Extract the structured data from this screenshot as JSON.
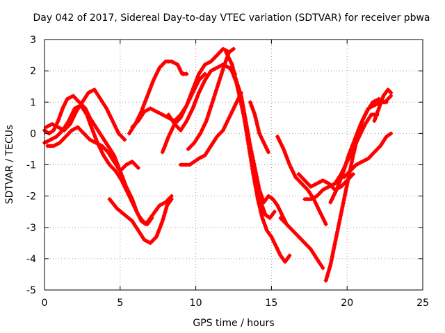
{
  "chart_data": {
    "type": "scatter",
    "title": "Day 042 of 2017, Sidereal Day-to-day VTEC variation (SDTVAR) for receiver pbwa",
    "xlabel": "GPS time / hours",
    "ylabel": "SDTVAR / TECUs",
    "xlim": [
      0,
      25
    ],
    "ylim": [
      -5,
      3
    ],
    "x_ticks": [
      "0",
      "5",
      "10",
      "15",
      "20",
      "25"
    ],
    "y_ticks": [
      "3",
      "2",
      "1",
      "0",
      "-1",
      "-2",
      "-3",
      "-4",
      "-5"
    ],
    "grid": true,
    "marker": "+",
    "color": "#ff0000",
    "series": [
      {
        "x": [
          0.0,
          0.3,
          0.6,
          0.9,
          1.2,
          1.5,
          1.9,
          2.3,
          2.7,
          3.0,
          3.4,
          3.8,
          4.2,
          4.6,
          5.0,
          5.4,
          5.8,
          6.1,
          6.4,
          6.7,
          7.0,
          7.3,
          7.6,
          8.0,
          8.4
        ],
        "y": [
          0.1,
          0.0,
          0.1,
          0.4,
          0.8,
          1.1,
          1.2,
          1.0,
          0.8,
          0.5,
          0.2,
          -0.1,
          -0.4,
          -0.7,
          -1.2,
          -1.7,
          -2.1,
          -2.5,
          -2.8,
          -2.9,
          -2.7,
          -2.5,
          -2.3,
          -2.2,
          -2.0
        ]
      },
      {
        "x": [
          0.0,
          0.4,
          0.8,
          1.2,
          1.6,
          2.0,
          2.4,
          2.8,
          3.1,
          3.5,
          3.9,
          4.3,
          4.7,
          5.1,
          5.5,
          5.9,
          6.2,
          6.5,
          6.8,
          7.1
        ],
        "y": [
          -0.3,
          -0.2,
          -0.1,
          0.1,
          0.4,
          0.8,
          0.9,
          0.6,
          0.2,
          -0.3,
          -0.7,
          -1.0,
          -1.2,
          -1.5,
          -1.9,
          -2.3,
          -2.6,
          -2.8,
          -2.9,
          -2.7
        ]
      },
      {
        "x": [
          0.1,
          0.5,
          0.9,
          1.3,
          1.7,
          2.1,
          2.5,
          2.9,
          3.3,
          3.7,
          4.1,
          4.5,
          4.9,
          5.3
        ],
        "y": [
          0.2,
          0.3,
          0.2,
          0.1,
          0.3,
          0.7,
          1.0,
          1.3,
          1.4,
          1.1,
          0.8,
          0.4,
          0.0,
          -0.2
        ]
      },
      {
        "x": [
          0.2,
          0.6,
          1.0,
          1.4,
          1.8,
          2.2,
          2.6,
          3.0,
          3.4,
          3.8,
          4.2,
          4.6,
          5.0,
          5.4,
          5.8,
          6.2
        ],
        "y": [
          -0.4,
          -0.4,
          -0.3,
          -0.1,
          0.1,
          0.2,
          0.0,
          -0.2,
          -0.3,
          -0.4,
          -0.6,
          -0.9,
          -1.2,
          -1.0,
          -0.9,
          -1.1
        ]
      },
      {
        "x": [
          4.3,
          4.8,
          5.3,
          5.8,
          6.2,
          6.6,
          7.0,
          7.4,
          7.8,
          8.1,
          8.4
        ],
        "y": [
          -2.1,
          -2.4,
          -2.6,
          -2.8,
          -3.1,
          -3.4,
          -3.5,
          -3.3,
          -2.8,
          -2.3,
          -2.1
        ]
      },
      {
        "x": [
          5.6,
          6.0,
          6.4,
          6.8,
          7.2,
          7.6,
          8.0,
          8.4,
          8.8,
          9.1,
          9.4
        ],
        "y": [
          0.0,
          0.3,
          0.7,
          1.2,
          1.7,
          2.1,
          2.3,
          2.3,
          2.2,
          1.9,
          1.9
        ]
      },
      {
        "x": [
          5.8,
          6.2,
          6.6,
          7.0,
          7.4,
          7.8,
          8.2,
          8.6,
          9.0,
          9.4,
          9.8,
          10.2,
          10.6
        ],
        "y": [
          0.2,
          0.4,
          0.7,
          0.8,
          0.7,
          0.6,
          0.5,
          0.4,
          0.6,
          0.9,
          1.3,
          1.7,
          1.9
        ]
      },
      {
        "x": [
          7.8,
          8.2,
          8.6,
          9.0,
          9.4,
          9.8,
          10.2,
          10.6,
          11.0,
          11.4,
          11.8,
          12.2
        ],
        "y": [
          -0.6,
          -0.1,
          0.3,
          0.5,
          0.9,
          1.4,
          1.9,
          2.2,
          2.3,
          2.5,
          2.7,
          2.6
        ]
      },
      {
        "x": [
          8.2,
          8.6,
          9.0,
          9.4,
          9.8,
          10.2,
          10.6,
          11.0,
          11.4,
          11.8,
          12.2,
          12.6
        ],
        "y": [
          0.6,
          0.3,
          0.1,
          0.4,
          0.8,
          1.3,
          1.7,
          2.0,
          2.1,
          2.2,
          2.1,
          1.9
        ]
      },
      {
        "x": [
          9.0,
          9.3,
          9.6,
          9.9,
          10.2,
          10.6,
          11.0,
          11.4,
          11.8,
          12.2,
          12.6,
          13.0
        ],
        "y": [
          -1.0,
          -1.0,
          -1.0,
          -0.9,
          -0.8,
          -0.7,
          -0.4,
          -0.1,
          0.1,
          0.5,
          0.9,
          1.3
        ]
      },
      {
        "x": [
          9.5,
          9.9,
          10.3,
          10.7,
          11.1,
          11.5,
          11.9,
          12.2,
          12.5
        ],
        "y": [
          -0.5,
          -0.3,
          0.0,
          0.4,
          1.0,
          1.6,
          2.2,
          2.6,
          2.7
        ]
      },
      {
        "x": [
          12.0,
          12.4,
          12.8,
          13.2,
          13.5,
          13.8,
          14.1,
          14.4,
          14.7,
          15.0,
          15.3,
          15.6,
          15.9,
          16.2
        ],
        "y": [
          2.6,
          2.2,
          1.4,
          0.5,
          -0.4,
          -1.3,
          -2.1,
          -2.7,
          -3.1,
          -3.3,
          -3.6,
          -3.9,
          -4.1,
          -3.9
        ]
      },
      {
        "x": [
          12.3,
          12.7,
          13.1,
          13.4,
          13.7,
          14.0,
          14.3,
          14.6,
          14.9,
          15.2
        ],
        "y": [
          2.1,
          1.6,
          0.8,
          0.0,
          -0.8,
          -1.6,
          -2.2,
          -2.6,
          -2.7,
          -2.5
        ]
      },
      {
        "x": [
          12.6,
          13.0,
          13.3,
          13.6,
          13.9,
          14.2,
          14.5,
          14.8,
          15.1,
          15.4,
          15.7,
          16.0
        ],
        "y": [
          1.8,
          1.2,
          0.4,
          -0.4,
          -1.1,
          -1.8,
          -2.2,
          -2.0,
          -2.1,
          -2.3,
          -2.6,
          -2.9
        ]
      },
      {
        "x": [
          13.6,
          13.9,
          14.2,
          14.5,
          14.8
        ],
        "y": [
          1.0,
          0.6,
          0.0,
          -0.3,
          -0.6
        ]
      },
      {
        "x": [
          15.4,
          15.8,
          16.2,
          16.6,
          17.0,
          17.4,
          17.8,
          18.2,
          18.6
        ],
        "y": [
          -0.1,
          -0.5,
          -1.0,
          -1.4,
          -1.6,
          -1.8,
          -2.1,
          -2.5,
          -2.9
        ]
      },
      {
        "x": [
          15.6,
          16.0,
          16.4,
          16.8,
          17.2,
          17.6,
          18.0,
          18.4
        ],
        "y": [
          -2.7,
          -2.9,
          -3.1,
          -3.3,
          -3.5,
          -3.7,
          -4.0,
          -4.3
        ]
      },
      {
        "x": [
          16.8,
          17.2,
          17.6,
          18.0,
          18.4,
          18.8,
          19.2,
          19.6,
          20.0,
          20.4
        ],
        "y": [
          -1.3,
          -1.5,
          -1.7,
          -1.6,
          -1.5,
          -1.6,
          -1.8,
          -1.7,
          -1.5,
          -1.3
        ]
      },
      {
        "x": [
          17.2,
          17.6,
          18.0,
          18.4,
          18.8,
          19.2,
          19.6,
          20.0,
          20.4,
          20.8,
          21.2,
          21.6,
          22.0
        ],
        "y": [
          -2.1,
          -2.1,
          -2.0,
          -1.8,
          -1.7,
          -1.6,
          -1.3,
          -0.9,
          -0.5,
          -0.1,
          0.3,
          0.6,
          0.6
        ]
      },
      {
        "x": [
          18.6,
          18.9,
          19.2,
          19.5,
          19.8,
          20.1,
          20.4,
          20.7,
          21.0,
          21.4,
          21.8,
          22.2,
          22.6
        ],
        "y": [
          -4.7,
          -4.2,
          -3.5,
          -2.8,
          -2.1,
          -1.4,
          -0.7,
          -0.1,
          0.4,
          0.8,
          0.9,
          1.0,
          1.0
        ]
      },
      {
        "x": [
          18.9,
          19.3,
          19.7,
          20.1,
          20.5,
          20.9,
          21.3,
          21.7,
          22.1,
          22.5,
          22.9
        ],
        "y": [
          -2.2,
          -1.8,
          -1.3,
          -0.7,
          -0.2,
          0.3,
          0.7,
          1.0,
          1.1,
          1.0,
          1.2
        ]
      },
      {
        "x": [
          19.8,
          20.2,
          20.6,
          21.0,
          21.4,
          21.8,
          22.2,
          22.6,
          22.9
        ],
        "y": [
          -1.4,
          -1.2,
          -1.0,
          -0.9,
          -0.8,
          -0.6,
          -0.4,
          -0.1,
          0.0
        ]
      },
      {
        "x": [
          21.8,
          22.1,
          22.4,
          22.7,
          22.9
        ],
        "y": [
          0.4,
          0.8,
          1.2,
          1.4,
          1.3
        ]
      }
    ]
  }
}
